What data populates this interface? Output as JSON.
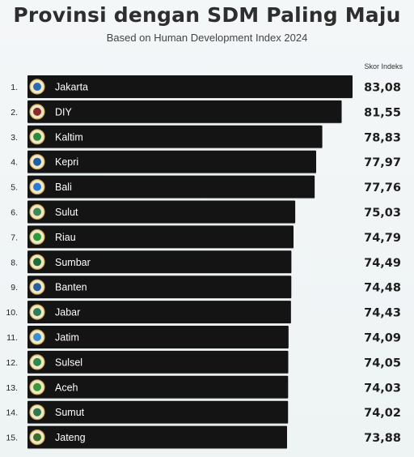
{
  "chart_data": {
    "type": "bar",
    "orientation": "horizontal",
    "title": "Provinsi dengan SDM Paling Maju",
    "subtitle": "Based on Human Development Index 2024",
    "value_header": "Skor Indeks",
    "categories": [
      "Jakarta",
      "DIY",
      "Kaltim",
      "Kepri",
      "Bali",
      "Sulut",
      "Riau",
      "Sumbar",
      "Banten",
      "Jabar",
      "Jatim",
      "Sulsel",
      "Aceh",
      "Sumut",
      "Jateng"
    ],
    "ranks": [
      "1.",
      "2.",
      "3.",
      "4.",
      "5.",
      "6.",
      "7.",
      "8.",
      "9.",
      "10.",
      "11.",
      "12.",
      "13.",
      "14.",
      "15."
    ],
    "values": [
      83.08,
      81.55,
      78.83,
      77.97,
      77.76,
      75.03,
      74.79,
      74.49,
      74.48,
      74.43,
      74.09,
      74.05,
      74.03,
      74.02,
      73.88
    ],
    "value_labels": [
      "83,08",
      "81,55",
      "78,83",
      "77,97",
      "77,76",
      "75,03",
      "74,79",
      "74,49",
      "74,48",
      "74,43",
      "74,09",
      "74,05",
      "74,03",
      "74,02",
      "73,88"
    ],
    "bar_color": "#141414",
    "emblem_colors": [
      "#2b6cb0",
      "#8b2a2a",
      "#2f8a3c",
      "#1f5fa8",
      "#2a7bd0",
      "#3c8a56",
      "#2c9a3a",
      "#1e6e3a",
      "#2a5f9e",
      "#2e7d5a",
      "#3b8ed0",
      "#2f8a4a",
      "#3a9a3a",
      "#2f7a4a",
      "#3d6e2a"
    ]
  }
}
